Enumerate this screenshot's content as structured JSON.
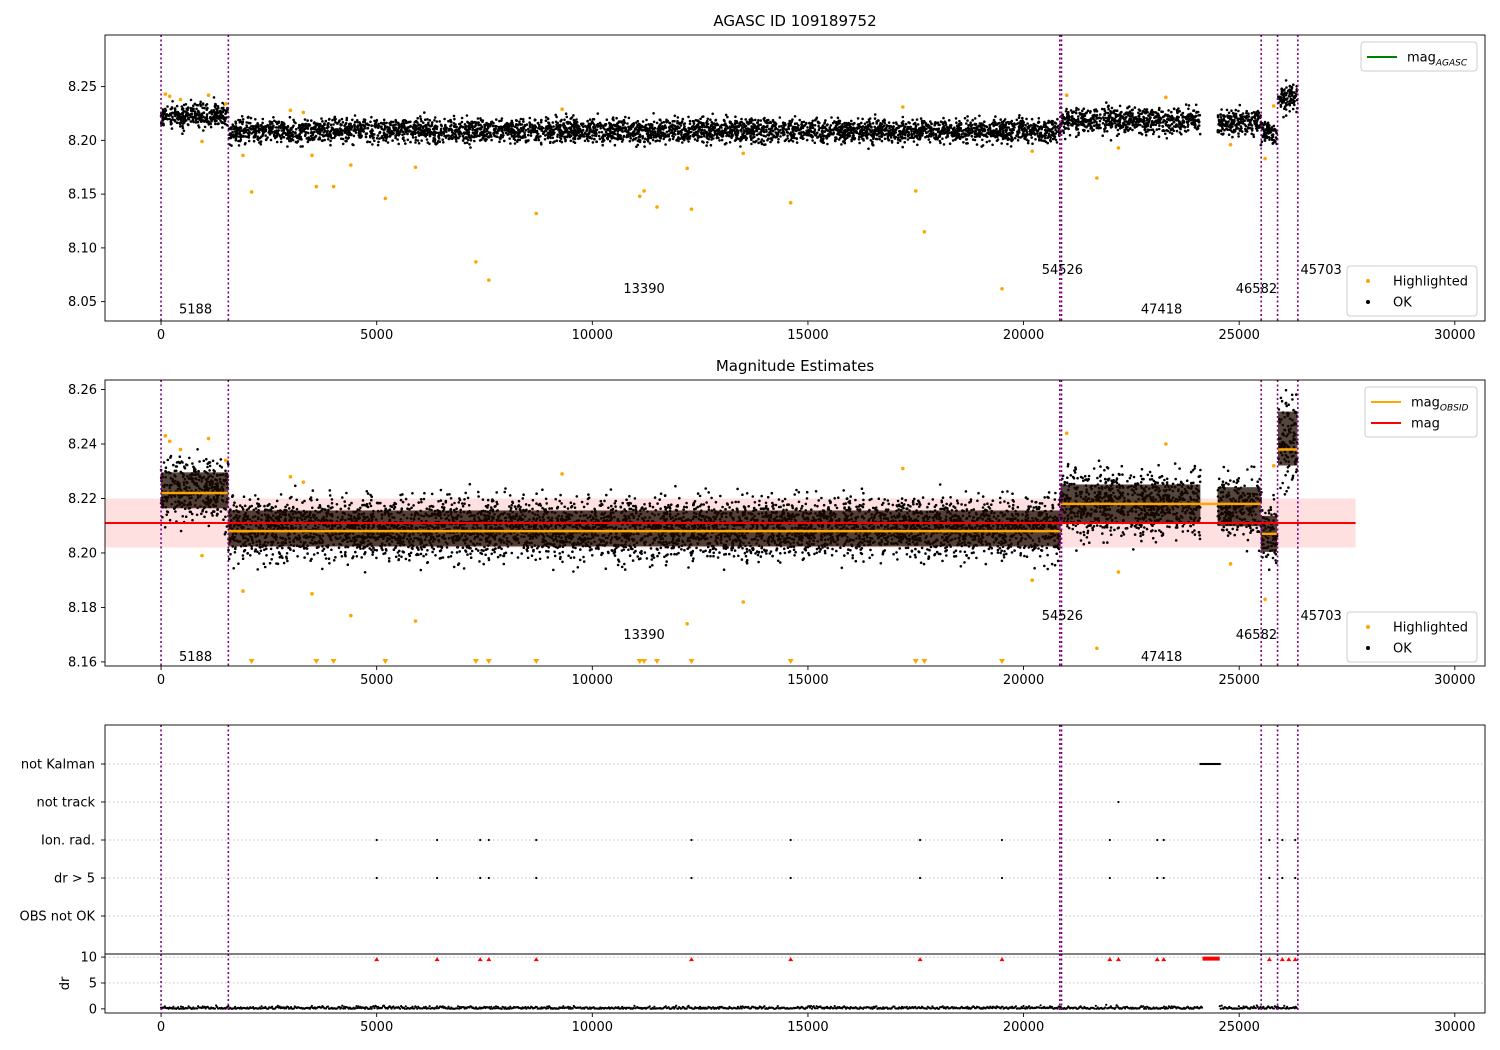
{
  "chart_data": [
    {
      "type": "scatter",
      "title": "AGASC ID 109189752",
      "xlabel": "",
      "ylabel": "",
      "xlim": [
        -1300,
        30700
      ],
      "ylim": [
        8.032,
        8.298
      ],
      "xticks": [
        0,
        5000,
        10000,
        15000,
        20000,
        25000,
        30000
      ],
      "yticks": [
        8.05,
        8.1,
        8.15,
        8.2,
        8.25
      ],
      "ytick_labels": [
        "8.05",
        "8.10",
        "8.15",
        "8.20",
        "8.25"
      ],
      "obsid_boundaries": [
        0,
        1560,
        20840,
        20880,
        25510,
        25890,
        26360
      ],
      "obsid_labels": [
        {
          "x": 800,
          "y": 8.043,
          "text": "5188"
        },
        {
          "x": 11200,
          "y": 8.062,
          "text": "13390"
        },
        {
          "x": 20900,
          "y": 8.08,
          "text": "54526"
        },
        {
          "x": 23200,
          "y": 8.043,
          "text": "47418"
        },
        {
          "x": 25400,
          "y": 8.062,
          "text": "46582"
        },
        {
          "x": 26900,
          "y": 8.08,
          "text": "45703"
        }
      ],
      "ok_bands": [
        {
          "x": [
            0,
            1560
          ],
          "center": 8.223,
          "halfwidth": 0.012
        },
        {
          "x": [
            1560,
            20860
          ],
          "center": 8.209,
          "halfwidth": 0.012
        },
        {
          "x": [
            20860,
            24100
          ],
          "center": 8.218,
          "halfwidth": 0.013
        },
        {
          "x": [
            24500,
            25500
          ],
          "center": 8.217,
          "halfwidth": 0.013
        },
        {
          "x": [
            25500,
            25880
          ],
          "center": 8.207,
          "halfwidth": 0.012
        },
        {
          "x": [
            25900,
            26350
          ],
          "center": 8.24,
          "halfwidth": 0.016
        }
      ],
      "highlighted_points": [
        {
          "x": 100,
          "y": 8.243
        },
        {
          "x": 200,
          "y": 8.241
        },
        {
          "x": 450,
          "y": 8.238
        },
        {
          "x": 950,
          "y": 8.199
        },
        {
          "x": 1100,
          "y": 8.242
        },
        {
          "x": 1500,
          "y": 8.234
        },
        {
          "x": 1900,
          "y": 8.186
        },
        {
          "x": 2100,
          "y": 8.152
        },
        {
          "x": 3000,
          "y": 8.228
        },
        {
          "x": 3300,
          "y": 8.226
        },
        {
          "x": 3500,
          "y": 8.186
        },
        {
          "x": 3600,
          "y": 8.157
        },
        {
          "x": 4000,
          "y": 8.157
        },
        {
          "x": 4400,
          "y": 8.177
        },
        {
          "x": 5200,
          "y": 8.146
        },
        {
          "x": 5900,
          "y": 8.175
        },
        {
          "x": 7300,
          "y": 8.087
        },
        {
          "x": 7600,
          "y": 8.07
        },
        {
          "x": 8700,
          "y": 8.132
        },
        {
          "x": 9300,
          "y": 8.229
        },
        {
          "x": 11100,
          "y": 8.148
        },
        {
          "x": 11200,
          "y": 8.153
        },
        {
          "x": 11500,
          "y": 8.138
        },
        {
          "x": 12200,
          "y": 8.174
        },
        {
          "x": 12300,
          "y": 8.136
        },
        {
          "x": 13500,
          "y": 8.188
        },
        {
          "x": 14600,
          "y": 8.142
        },
        {
          "x": 17200,
          "y": 8.231
        },
        {
          "x": 17500,
          "y": 8.153
        },
        {
          "x": 17700,
          "y": 8.115
        },
        {
          "x": 19500,
          "y": 8.062
        },
        {
          "x": 20200,
          "y": 8.19
        },
        {
          "x": 21000,
          "y": 8.242
        },
        {
          "x": 21700,
          "y": 8.165
        },
        {
          "x": 22200,
          "y": 8.193
        },
        {
          "x": 23300,
          "y": 8.24
        },
        {
          "x": 24800,
          "y": 8.196
        },
        {
          "x": 25600,
          "y": 8.183
        },
        {
          "x": 25800,
          "y": 8.232
        }
      ],
      "legends": [
        {
          "position": "upper right",
          "entries": [
            {
              "label": "mag",
              "sub": "AGASC",
              "color": "#008000",
              "kind": "line"
            }
          ]
        },
        {
          "position": "lower right",
          "entries": [
            {
              "label": "Highlighted",
              "color": "#ffa500",
              "kind": "dot"
            },
            {
              "label": "OK",
              "color": "#000000",
              "kind": "dot"
            }
          ]
        }
      ]
    },
    {
      "type": "scatter",
      "title": "Magnitude Estimates",
      "xlabel": "",
      "ylabel": "",
      "xlim": [
        -1300,
        30700
      ],
      "ylim": [
        8.1585,
        8.2635
      ],
      "xticks": [
        0,
        5000,
        10000,
        15000,
        20000,
        25000,
        30000
      ],
      "yticks": [
        8.16,
        8.18,
        8.2,
        8.22,
        8.24,
        8.26
      ],
      "ytick_labels": [
        "8.16",
        "8.18",
        "8.20",
        "8.22",
        "8.24",
        "8.26"
      ],
      "obsid_boundaries": [
        0,
        1560,
        20840,
        20880,
        25510,
        25890,
        26360
      ],
      "obsid_labels": [
        {
          "x": 800,
          "y": 8.162,
          "text": "5188"
        },
        {
          "x": 11200,
          "y": 8.17,
          "text": "13390"
        },
        {
          "x": 20900,
          "y": 8.177,
          "text": "54526"
        },
        {
          "x": 23200,
          "y": 8.162,
          "text": "47418"
        },
        {
          "x": 25400,
          "y": 8.17,
          "text": "46582"
        },
        {
          "x": 26900,
          "y": 8.177,
          "text": "45703"
        }
      ],
      "mag": {
        "value": 8.211,
        "x": [
          -1300,
          27700
        ],
        "band": [
          8.202,
          8.22
        ],
        "color": "#ff0000"
      },
      "mag_obsid": [
        {
          "x": [
            0,
            1560
          ],
          "y": 8.222
        },
        {
          "x": [
            1560,
            20860
          ],
          "y": 8.208
        },
        {
          "x": [
            20860,
            25510
          ],
          "y": 8.218
        },
        {
          "x": [
            25510,
            25890
          ],
          "y": 8.207
        },
        {
          "x": [
            25890,
            26360
          ],
          "y": 8.238
        }
      ],
      "ok_bands": [
        {
          "x": [
            0,
            1560
          ],
          "center": 8.223,
          "halfwidth": 0.012
        },
        {
          "x": [
            1560,
            20860
          ],
          "center": 8.209,
          "halfwidth": 0.012
        },
        {
          "x": [
            20860,
            24100
          ],
          "center": 8.218,
          "halfwidth": 0.013
        },
        {
          "x": [
            24500,
            25500
          ],
          "center": 8.217,
          "halfwidth": 0.013
        },
        {
          "x": [
            25500,
            25880
          ],
          "center": 8.207,
          "halfwidth": 0.012
        },
        {
          "x": [
            25900,
            26350
          ],
          "center": 8.242,
          "halfwidth": 0.018
        }
      ],
      "highlighted_points": [
        {
          "x": 100,
          "y": 8.243
        },
        {
          "x": 200,
          "y": 8.241
        },
        {
          "x": 450,
          "y": 8.238
        },
        {
          "x": 950,
          "y": 8.199
        },
        {
          "x": 1100,
          "y": 8.242
        },
        {
          "x": 1500,
          "y": 8.234
        },
        {
          "x": 1900,
          "y": 8.186
        },
        {
          "x": 3000,
          "y": 8.228
        },
        {
          "x": 3300,
          "y": 8.226
        },
        {
          "x": 3500,
          "y": 8.185
        },
        {
          "x": 4400,
          "y": 8.177
        },
        {
          "x": 5900,
          "y": 8.175
        },
        {
          "x": 9300,
          "y": 8.229
        },
        {
          "x": 12200,
          "y": 8.174
        },
        {
          "x": 13500,
          "y": 8.182
        },
        {
          "x": 17200,
          "y": 8.231
        },
        {
          "x": 20200,
          "y": 8.19
        },
        {
          "x": 21000,
          "y": 8.244
        },
        {
          "x": 21700,
          "y": 8.165
        },
        {
          "x": 22200,
          "y": 8.193
        },
        {
          "x": 23300,
          "y": 8.24
        },
        {
          "x": 24800,
          "y": 8.196
        },
        {
          "x": 25600,
          "y": 8.183
        },
        {
          "x": 25800,
          "y": 8.232
        }
      ],
      "clipped_low_markers": [
        2100,
        3600,
        4000,
        5200,
        7300,
        7600,
        8700,
        11100,
        11200,
        11500,
        12300,
        14600,
        17500,
        17700,
        19500
      ],
      "legends": [
        {
          "position": "upper right",
          "entries": [
            {
              "label": "mag",
              "sub": "OBSID",
              "color": "#ffa500",
              "kind": "line"
            },
            {
              "label": "mag",
              "color": "#ff0000",
              "kind": "line"
            }
          ]
        },
        {
          "position": "lower right",
          "entries": [
            {
              "label": "Highlighted",
              "color": "#ffa500",
              "kind": "dot"
            },
            {
              "label": "OK",
              "color": "#000000",
              "kind": "dot"
            }
          ]
        }
      ]
    },
    {
      "type": "scatter",
      "title": "",
      "xlim": [
        -1300,
        30700
      ],
      "xticks": [
        0,
        5000,
        10000,
        15000,
        20000,
        25000,
        30000
      ],
      "flag_rows": [
        "not Kalman",
        "not track",
        "Ion. rad.",
        "dr > 5",
        "OBS not OK"
      ],
      "obsid_boundaries": [
        0,
        1560,
        20840,
        20880,
        25510,
        25890,
        26360
      ],
      "flags": {
        "not Kalman": [
          [
            24100,
            24550
          ]
        ],
        "not track": [
          22200
        ],
        "Ion. rad.": [
          5000,
          6400,
          7400,
          7600,
          8700,
          12300,
          14600,
          17600,
          19500,
          22000,
          23100,
          23250,
          25700,
          26000,
          26300
        ],
        "dr > 5": [
          5000,
          6400,
          7400,
          7600,
          8700,
          12300,
          14600,
          17600,
          19500,
          22000,
          23100,
          23250,
          25700,
          26000,
          26300
        ]
      },
      "dr": {
        "ylabel": "dr",
        "yticks": [
          0,
          5,
          10
        ],
        "ylim": [
          -0.8,
          10.6
        ],
        "clipped_markers": [
          5000,
          6400,
          7400,
          7600,
          8700,
          12300,
          14600,
          17600,
          19500,
          22000,
          22200,
          23100,
          23250,
          25700,
          26000,
          26150,
          26300
        ],
        "clipped_span": [
          24150,
          24550
        ],
        "segments": [
          [
            0,
            20860
          ],
          [
            20860,
            24150
          ],
          [
            24550,
            26350
          ]
        ]
      }
    }
  ]
}
